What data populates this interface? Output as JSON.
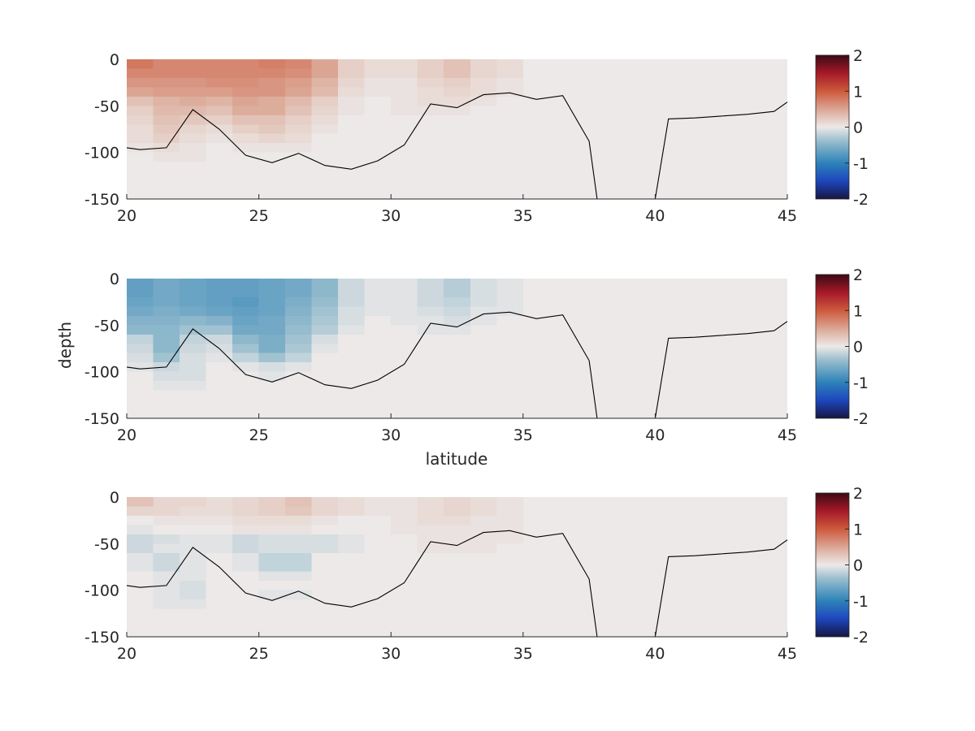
{
  "figure": {
    "xlabel": "latitude",
    "ylabel": "depth"
  },
  "chart_data": [
    {
      "type": "heatmap",
      "xlim": [
        20,
        45
      ],
      "ylim": [
        -150,
        0
      ],
      "xticks": [
        "20",
        "25",
        "30",
        "35",
        "40",
        "45"
      ],
      "yticks": [
        "0",
        "-50",
        "-100",
        "-150"
      ],
      "colorbar": {
        "range": [
          -2,
          2
        ],
        "ticks": [
          "2",
          "1",
          "0",
          "-1",
          "-2"
        ]
      },
      "grid": false,
      "lat_centers": [
        20.5,
        21.5,
        22.5,
        23.5,
        24.5,
        25.5,
        26.5,
        27.5,
        28.5,
        29.5,
        30.5,
        31.5,
        32.5,
        33.5,
        34.5
      ],
      "depth_centers": [
        -5,
        -15,
        -25,
        -35,
        -45,
        -55,
        -65,
        -75,
        -85,
        -95,
        -105,
        -115
      ],
      "values": [
        [
          0.8,
          0.7,
          0.7,
          0.7,
          0.7,
          0.75,
          0.7,
          0.5,
          0.2,
          0.1,
          0.1,
          0.2,
          0.3,
          0.15,
          0.1
        ],
        [
          0.7,
          0.7,
          0.7,
          0.7,
          0.7,
          0.7,
          0.65,
          0.5,
          0.2,
          0.1,
          0.1,
          0.2,
          0.3,
          0.15,
          0.1
        ],
        [
          0.6,
          0.6,
          0.6,
          0.65,
          0.65,
          0.6,
          0.55,
          0.4,
          0.15,
          0.05,
          0.05,
          0.15,
          0.2,
          0.1,
          0.05
        ],
        [
          0.5,
          0.55,
          0.55,
          0.55,
          0.6,
          0.6,
          0.5,
          0.35,
          0.1,
          0.05,
          0.05,
          0.1,
          0.15,
          0.1,
          0.05
        ],
        [
          0.3,
          0.4,
          0.45,
          0.4,
          0.5,
          0.45,
          0.35,
          0.2,
          0.05,
          0.0,
          0.05,
          0.1,
          0.1,
          0.05,
          0.0
        ],
        [
          0.2,
          0.35,
          0.35,
          0.3,
          0.45,
          0.45,
          0.3,
          0.15,
          0.05,
          0.0,
          0.05,
          0.05,
          0.05,
          0.0,
          0.0
        ],
        [
          0.15,
          0.3,
          0.25,
          0.2,
          0.3,
          0.3,
          0.2,
          0.1,
          0.0,
          0.0,
          0.0,
          0.0,
          0.0,
          0.0,
          0.0
        ],
        [
          0.1,
          0.25,
          0.15,
          0.1,
          0.2,
          0.25,
          0.15,
          0.05,
          0.0,
          0.0,
          0.0,
          0.0,
          0.0,
          0.0,
          0.0
        ],
        [
          0.1,
          0.2,
          0.1,
          0.05,
          0.1,
          0.15,
          0.1,
          0.0,
          0.0,
          0.0,
          0.0,
          0.0,
          0.0,
          0.0,
          0.0
        ],
        [
          0.05,
          0.1,
          0.05,
          0.0,
          0.05,
          0.05,
          0.05,
          0.0,
          0.0,
          0.0,
          0.0,
          0.0,
          0.0,
          0.0,
          0.0
        ],
        [
          0.0,
          0.05,
          0.05,
          0.0,
          0.0,
          0.0,
          0.0,
          0.0,
          0.0,
          0.0,
          0.0,
          0.0,
          0.0,
          0.0,
          0.0
        ],
        [
          0.0,
          0.0,
          0.0,
          0.0,
          0.0,
          0.0,
          0.0,
          0.0,
          0.0,
          0.0,
          0.0,
          0.0,
          0.0,
          0.0,
          0.0
        ]
      ],
      "background_value": 0.0,
      "bottom_line": {
        "lat": [
          20,
          20.5,
          21.5,
          22.5,
          23.5,
          24.5,
          25.5,
          26.5,
          27.5,
          28.5,
          29.5,
          30.5,
          31.5,
          32.5,
          33.5,
          34.5,
          35.5,
          36.5,
          37.5,
          37.8,
          40.0,
          40.5,
          41.5,
          42.5,
          43.5,
          44.5,
          45
        ],
        "depth": [
          -95,
          -97,
          -95,
          -54,
          -75,
          -103,
          -111,
          -101,
          -114,
          -118,
          -109,
          -92,
          -48,
          -52,
          -38,
          -36,
          -43,
          -39,
          -88,
          -150,
          -150,
          -64,
          -63,
          -61,
          -59,
          -56,
          -46
        ]
      }
    },
    {
      "type": "heatmap",
      "xlim": [
        20,
        45
      ],
      "ylim": [
        -150,
        0
      ],
      "xticks": [
        "20",
        "25",
        "30",
        "35",
        "40",
        "45"
      ],
      "yticks": [
        "0",
        "-50",
        "-100",
        "-150"
      ],
      "colorbar": {
        "range": [
          -2,
          2
        ],
        "ticks": [
          "2",
          "1",
          "0",
          "-1",
          "-2"
        ]
      },
      "grid": false,
      "lat_centers": [
        20.5,
        21.5,
        22.5,
        23.5,
        24.5,
        25.5,
        26.5,
        27.5,
        28.5,
        29.5,
        30.5,
        31.5,
        32.5,
        33.5,
        34.5
      ],
      "depth_centers": [
        -5,
        -15,
        -25,
        -35,
        -45,
        -55,
        -65,
        -75,
        -85,
        -95,
        -105,
        -115
      ],
      "values": [
        [
          -0.7,
          -0.6,
          -0.65,
          -0.7,
          -0.7,
          -0.65,
          -0.6,
          -0.45,
          -0.15,
          -0.05,
          -0.05,
          -0.15,
          -0.25,
          -0.1,
          -0.05
        ],
        [
          -0.7,
          -0.6,
          -0.65,
          -0.7,
          -0.7,
          -0.65,
          -0.6,
          -0.45,
          -0.15,
          -0.05,
          -0.05,
          -0.15,
          -0.25,
          -0.1,
          -0.05
        ],
        [
          -0.65,
          -0.6,
          -0.65,
          -0.7,
          -0.75,
          -0.65,
          -0.55,
          -0.4,
          -0.15,
          -0.05,
          -0.05,
          -0.15,
          -0.2,
          -0.1,
          -0.05
        ],
        [
          -0.6,
          -0.55,
          -0.6,
          -0.65,
          -0.7,
          -0.65,
          -0.5,
          -0.35,
          -0.1,
          -0.05,
          -0.05,
          -0.1,
          -0.15,
          -0.05,
          -0.05
        ],
        [
          -0.5,
          -0.5,
          -0.45,
          -0.5,
          -0.65,
          -0.6,
          -0.45,
          -0.3,
          -0.1,
          0.0,
          -0.05,
          -0.05,
          -0.1,
          -0.05,
          0.0
        ],
        [
          -0.45,
          -0.45,
          -0.35,
          -0.35,
          -0.6,
          -0.6,
          -0.4,
          -0.25,
          -0.05,
          0.0,
          0.0,
          -0.05,
          -0.05,
          0.0,
          0.0
        ],
        [
          -0.2,
          -0.45,
          -0.2,
          -0.15,
          -0.45,
          -0.55,
          -0.35,
          -0.1,
          0.0,
          0.0,
          0.0,
          0.0,
          0.0,
          0.0,
          0.0
        ],
        [
          -0.15,
          -0.45,
          -0.15,
          -0.1,
          -0.35,
          -0.55,
          -0.3,
          -0.05,
          0.0,
          0.0,
          0.0,
          0.0,
          0.0,
          0.0,
          0.0
        ],
        [
          -0.1,
          -0.35,
          -0.1,
          -0.05,
          -0.2,
          -0.35,
          -0.2,
          0.0,
          0.0,
          0.0,
          0.0,
          0.0,
          0.0,
          0.0,
          0.0
        ],
        [
          -0.05,
          -0.15,
          -0.1,
          0.0,
          -0.05,
          -0.1,
          -0.05,
          0.0,
          0.0,
          0.0,
          0.0,
          0.0,
          0.0,
          0.0,
          0.0
        ],
        [
          0.0,
          -0.1,
          -0.1,
          0.0,
          0.0,
          -0.05,
          0.0,
          0.0,
          0.0,
          0.0,
          0.0,
          0.0,
          0.0,
          0.0,
          0.0
        ],
        [
          0.0,
          -0.05,
          -0.05,
          0.0,
          0.0,
          0.0,
          0.0,
          0.0,
          0.0,
          0.0,
          0.0,
          0.0,
          0.0,
          0.0,
          0.0
        ]
      ],
      "background_value": 0.0,
      "bottom_line": {
        "lat": [
          20,
          20.5,
          21.5,
          22.5,
          23.5,
          24.5,
          25.5,
          26.5,
          27.5,
          28.5,
          29.5,
          30.5,
          31.5,
          32.5,
          33.5,
          34.5,
          35.5,
          36.5,
          37.5,
          37.8,
          40.0,
          40.5,
          41.5,
          42.5,
          43.5,
          44.5,
          45
        ],
        "depth": [
          -95,
          -97,
          -95,
          -54,
          -75,
          -103,
          -111,
          -101,
          -114,
          -118,
          -109,
          -92,
          -48,
          -52,
          -38,
          -36,
          -43,
          -39,
          -88,
          -150,
          -150,
          -64,
          -63,
          -61,
          -59,
          -56,
          -46
        ]
      }
    },
    {
      "type": "heatmap",
      "xlim": [
        20,
        45
      ],
      "ylim": [
        -150,
        0
      ],
      "xticks": [
        "20",
        "25",
        "30",
        "35",
        "40",
        "45"
      ],
      "yticks": [
        "0",
        "-50",
        "-100",
        "-150"
      ],
      "colorbar": {
        "range": [
          -2,
          2
        ],
        "ticks": [
          "2",
          "1",
          "0",
          "-1",
          "-2"
        ]
      },
      "grid": false,
      "lat_centers": [
        20.5,
        21.5,
        22.5,
        23.5,
        24.5,
        25.5,
        26.5,
        27.5,
        28.5,
        29.5,
        30.5,
        31.5,
        32.5,
        33.5,
        34.5
      ],
      "depth_centers": [
        -5,
        -15,
        -25,
        -35,
        -45,
        -55,
        -65,
        -75,
        -85,
        -95,
        -105,
        -115
      ],
      "values": [
        [
          0.3,
          0.15,
          0.15,
          0.1,
          0.15,
          0.2,
          0.3,
          0.15,
          0.1,
          0.05,
          0.05,
          0.1,
          0.15,
          0.1,
          0.05
        ],
        [
          0.15,
          0.15,
          0.1,
          0.1,
          0.15,
          0.2,
          0.25,
          0.15,
          0.1,
          0.05,
          0.05,
          0.1,
          0.15,
          0.1,
          0.05
        ],
        [
          0.0,
          0.05,
          0.05,
          0.05,
          0.1,
          0.1,
          0.1,
          0.05,
          0.0,
          0.0,
          0.05,
          0.1,
          0.1,
          0.05,
          0.05
        ],
        [
          -0.05,
          0.0,
          0.0,
          0.0,
          0.05,
          0.05,
          0.05,
          0.0,
          0.0,
          0.0,
          0.05,
          0.05,
          0.05,
          0.05,
          0.05
        ],
        [
          -0.15,
          -0.1,
          -0.05,
          -0.05,
          -0.15,
          -0.1,
          -0.1,
          -0.1,
          -0.05,
          0.0,
          0.0,
          0.05,
          0.05,
          0.05,
          0.05
        ],
        [
          -0.15,
          -0.05,
          -0.05,
          -0.05,
          -0.15,
          -0.1,
          -0.1,
          -0.1,
          -0.05,
          0.0,
          0.0,
          0.05,
          0.05,
          0.05,
          0.0
        ],
        [
          -0.05,
          -0.15,
          -0.05,
          0.0,
          -0.05,
          -0.2,
          -0.2,
          0.0,
          0.0,
          0.0,
          0.0,
          0.0,
          0.0,
          0.0,
          0.0
        ],
        [
          -0.05,
          -0.15,
          -0.05,
          0.0,
          -0.05,
          -0.2,
          -0.2,
          0.0,
          0.0,
          0.0,
          0.0,
          0.0,
          0.0,
          0.0,
          0.0
        ],
        [
          0.0,
          -0.05,
          -0.05,
          0.0,
          0.0,
          -0.05,
          -0.05,
          0.0,
          0.0,
          0.0,
          0.0,
          0.0,
          0.0,
          0.0,
          0.0
        ],
        [
          0.0,
          -0.05,
          -0.1,
          0.0,
          0.0,
          0.0,
          0.0,
          0.0,
          0.0,
          0.0,
          0.0,
          0.0,
          0.0,
          0.0,
          0.0
        ],
        [
          0.0,
          -0.05,
          -0.1,
          0.0,
          0.0,
          -0.05,
          -0.05,
          0.0,
          0.0,
          0.0,
          0.0,
          0.0,
          0.0,
          0.0,
          0.0
        ],
        [
          0.0,
          -0.05,
          -0.05,
          0.0,
          0.0,
          0.0,
          0.0,
          0.0,
          0.0,
          0.0,
          0.0,
          0.0,
          0.0,
          0.0,
          0.0
        ]
      ],
      "background_value": 0.0,
      "bottom_line": {
        "lat": [
          20,
          20.5,
          21.5,
          22.5,
          23.5,
          24.5,
          25.5,
          26.5,
          27.5,
          28.5,
          29.5,
          30.5,
          31.5,
          32.5,
          33.5,
          34.5,
          35.5,
          36.5,
          37.5,
          37.8,
          40.0,
          40.5,
          41.5,
          42.5,
          43.5,
          44.5,
          45
        ],
        "depth": [
          -95,
          -97,
          -95,
          -54,
          -75,
          -103,
          -111,
          -101,
          -114,
          -118,
          -109,
          -92,
          -48,
          -52,
          -38,
          -36,
          -43,
          -39,
          -88,
          -150,
          -150,
          -64,
          -63,
          -61,
          -59,
          -56,
          -46
        ]
      }
    }
  ]
}
